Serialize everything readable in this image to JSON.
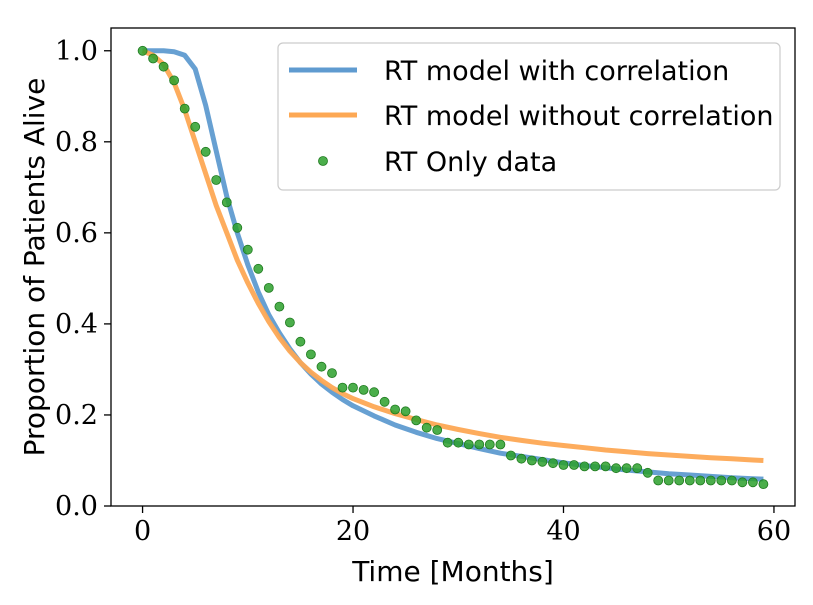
{
  "chart_data": {
    "type": "line",
    "title": "",
    "xlabel": "Time [Months]",
    "ylabel": "Proportion of Patients Alive",
    "xlim": [
      -3,
      62
    ],
    "ylim": [
      0.0,
      1.05
    ],
    "xticks": [
      0,
      20,
      40,
      60
    ],
    "yticks": [
      0.0,
      0.2,
      0.4,
      0.6,
      0.8,
      1.0
    ],
    "xtick_labels": [
      "0",
      "20",
      "40",
      "60"
    ],
    "ytick_labels": [
      "0.0",
      "0.2",
      "0.4",
      "0.6",
      "0.8",
      "1.0"
    ],
    "grid": false,
    "legend_position": "top-right",
    "series": [
      {
        "name": "RT model with correlation",
        "kind": "line",
        "color": "#5f9bd0",
        "x": [
          0,
          2,
          3,
          4,
          5,
          6,
          7,
          8,
          9,
          10,
          11,
          12,
          13,
          14,
          15,
          16,
          17,
          18,
          19,
          20,
          22,
          24,
          26,
          28,
          30,
          32,
          34,
          36,
          38,
          40,
          42,
          44,
          46,
          48,
          50,
          52,
          54,
          56,
          58,
          59
        ],
        "y": [
          1.0,
          1.0,
          0.998,
          0.99,
          0.96,
          0.88,
          0.78,
          0.68,
          0.6,
          0.53,
          0.47,
          0.42,
          0.38,
          0.345,
          0.315,
          0.29,
          0.268,
          0.25,
          0.234,
          0.22,
          0.198,
          0.178,
          0.162,
          0.148,
          0.137,
          0.126,
          0.116,
          0.109,
          0.102,
          0.095,
          0.089,
          0.084,
          0.079,
          0.075,
          0.071,
          0.068,
          0.065,
          0.062,
          0.06,
          0.059
        ]
      },
      {
        "name": "RT model without correlation",
        "kind": "line",
        "color": "#fda854",
        "x": [
          0,
          1,
          2,
          3,
          4,
          5,
          6,
          7,
          8,
          9,
          10,
          11,
          12,
          13,
          14,
          15,
          16,
          17,
          18,
          19,
          20,
          22,
          24,
          26,
          28,
          30,
          32,
          34,
          36,
          38,
          40,
          42,
          44,
          46,
          48,
          50,
          52,
          54,
          56,
          58,
          59
        ],
        "y": [
          1.0,
          0.99,
          0.97,
          0.93,
          0.87,
          0.8,
          0.73,
          0.66,
          0.6,
          0.54,
          0.49,
          0.445,
          0.405,
          0.37,
          0.34,
          0.315,
          0.294,
          0.276,
          0.26,
          0.247,
          0.236,
          0.218,
          0.203,
          0.19,
          0.178,
          0.168,
          0.159,
          0.151,
          0.144,
          0.138,
          0.133,
          0.128,
          0.123,
          0.119,
          0.115,
          0.112,
          0.109,
          0.106,
          0.104,
          0.101,
          0.1
        ]
      },
      {
        "name": "RT Only data",
        "kind": "scatter",
        "color": "#2ca02c",
        "x": [
          0,
          1,
          2,
          3,
          4,
          5,
          6,
          7,
          8,
          9,
          10,
          11,
          12,
          13,
          14,
          15,
          16,
          17,
          18,
          19,
          20,
          21,
          22,
          23,
          24,
          25,
          26,
          27,
          28,
          29,
          30,
          31,
          32,
          33,
          34,
          35,
          36,
          37,
          38,
          39,
          40,
          41,
          42,
          43,
          44,
          45,
          46,
          47,
          48,
          49,
          50,
          51,
          52,
          53,
          54,
          55,
          56,
          57,
          58,
          59
        ],
        "y": [
          1.0,
          0.983,
          0.965,
          0.935,
          0.873,
          0.833,
          0.778,
          0.716,
          0.667,
          0.611,
          0.563,
          0.521,
          0.479,
          0.438,
          0.403,
          0.361,
          0.333,
          0.306,
          0.292,
          0.26,
          0.26,
          0.255,
          0.25,
          0.229,
          0.212,
          0.208,
          0.188,
          0.172,
          0.167,
          0.139,
          0.139,
          0.135,
          0.135,
          0.135,
          0.135,
          0.111,
          0.104,
          0.1,
          0.097,
          0.094,
          0.09,
          0.09,
          0.087,
          0.087,
          0.087,
          0.083,
          0.083,
          0.083,
          0.073,
          0.056,
          0.056,
          0.056,
          0.056,
          0.056,
          0.056,
          0.056,
          0.056,
          0.052,
          0.052,
          0.048
        ]
      }
    ]
  }
}
